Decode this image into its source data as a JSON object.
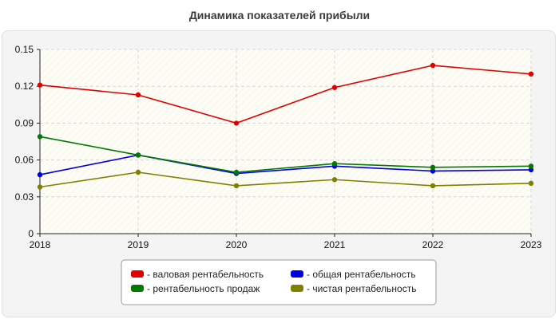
{
  "title": "Динамика показателей прибыли",
  "colors": {
    "plot_bg": "#fdfdf6",
    "grid": "#d6d6d6",
    "axis": "#222222"
  },
  "chart_data": {
    "type": "line",
    "title": "Динамика показателей прибыли",
    "x": [
      "2018",
      "2019",
      "2020",
      "2021",
      "2022",
      "2023"
    ],
    "ylim": [
      0,
      0.15
    ],
    "yticks": [
      "0",
      "0.03",
      "0.06",
      "0.09",
      "0.12",
      "0.15"
    ],
    "ytick_values": [
      0,
      0.03,
      0.06,
      0.09,
      0.12,
      0.15
    ],
    "grid": true,
    "legend_position": "bottom-center",
    "series": [
      {
        "name": "- валовая рентабельность",
        "color": "#e00000",
        "values": [
          0.121,
          0.113,
          0.09,
          0.119,
          0.137,
          0.13
        ]
      },
      {
        "name": "- общая рентабельность",
        "color": "#0000e0",
        "values": [
          0.048,
          0.064,
          0.049,
          0.055,
          0.051,
          0.052
        ]
      },
      {
        "name": "- рентабельность продаж",
        "color": "#007a00",
        "values": [
          0.079,
          0.064,
          0.05,
          0.057,
          0.054,
          0.055
        ]
      },
      {
        "name": "- чистая рентабельность",
        "color": "#808000",
        "values": [
          0.038,
          0.05,
          0.039,
          0.044,
          0.039,
          0.041
        ]
      }
    ]
  }
}
